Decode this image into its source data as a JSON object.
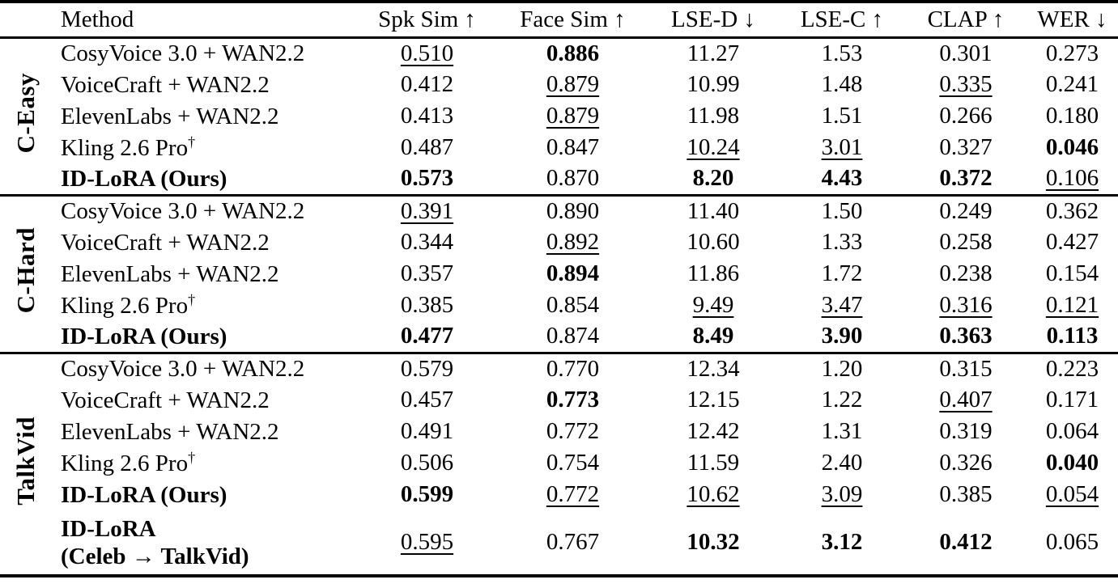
{
  "table": {
    "headers": [
      "Method",
      "Spk Sim ↑",
      "Face Sim ↑",
      "LSE-D ↓",
      "LSE-C ↑",
      "CLAP ↑",
      "WER ↓"
    ],
    "sections": [
      {
        "group": "C-Easy",
        "rows": [
          {
            "method_lines": [
              "CosyVoice 3.0 + WAN2.2"
            ],
            "bold": false,
            "sup": "",
            "cells": [
              {
                "v": "0.510",
                "s": "u"
              },
              {
                "v": "0.886",
                "s": "b"
              },
              {
                "v": "11.27",
                "s": ""
              },
              {
                "v": "1.53",
                "s": ""
              },
              {
                "v": "0.301",
                "s": ""
              },
              {
                "v": "0.273",
                "s": ""
              }
            ]
          },
          {
            "method_lines": [
              "VoiceCraft + WAN2.2"
            ],
            "bold": false,
            "sup": "",
            "cells": [
              {
                "v": "0.412",
                "s": ""
              },
              {
                "v": "0.879",
                "s": "u"
              },
              {
                "v": "10.99",
                "s": ""
              },
              {
                "v": "1.48",
                "s": ""
              },
              {
                "v": "0.335",
                "s": "u"
              },
              {
                "v": "0.241",
                "s": ""
              }
            ]
          },
          {
            "method_lines": [
              "ElevenLabs + WAN2.2"
            ],
            "bold": false,
            "sup": "",
            "cells": [
              {
                "v": "0.413",
                "s": ""
              },
              {
                "v": "0.879",
                "s": "u"
              },
              {
                "v": "11.98",
                "s": ""
              },
              {
                "v": "1.51",
                "s": ""
              },
              {
                "v": "0.266",
                "s": ""
              },
              {
                "v": "0.180",
                "s": ""
              }
            ]
          },
          {
            "method_lines": [
              "Kling 2.6 Pro"
            ],
            "bold": false,
            "sup": "†",
            "cells": [
              {
                "v": "0.487",
                "s": ""
              },
              {
                "v": "0.847",
                "s": ""
              },
              {
                "v": "10.24",
                "s": "u"
              },
              {
                "v": "3.01",
                "s": "u"
              },
              {
                "v": "0.327",
                "s": ""
              },
              {
                "v": "0.046",
                "s": "b"
              }
            ]
          },
          {
            "method_lines": [
              "ID-LoRA (Ours)"
            ],
            "bold": true,
            "sup": "",
            "cells": [
              {
                "v": "0.573",
                "s": "b"
              },
              {
                "v": "0.870",
                "s": ""
              },
              {
                "v": "8.20",
                "s": "b"
              },
              {
                "v": "4.43",
                "s": "b"
              },
              {
                "v": "0.372",
                "s": "b"
              },
              {
                "v": "0.106",
                "s": "u"
              }
            ]
          }
        ]
      },
      {
        "group": "C-Hard",
        "rows": [
          {
            "method_lines": [
              "CosyVoice 3.0 + WAN2.2"
            ],
            "bold": false,
            "sup": "",
            "cells": [
              {
                "v": "0.391",
                "s": "u"
              },
              {
                "v": "0.890",
                "s": ""
              },
              {
                "v": "11.40",
                "s": ""
              },
              {
                "v": "1.50",
                "s": ""
              },
              {
                "v": "0.249",
                "s": ""
              },
              {
                "v": "0.362",
                "s": ""
              }
            ]
          },
          {
            "method_lines": [
              "VoiceCraft + WAN2.2"
            ],
            "bold": false,
            "sup": "",
            "cells": [
              {
                "v": "0.344",
                "s": ""
              },
              {
                "v": "0.892",
                "s": "u"
              },
              {
                "v": "10.60",
                "s": ""
              },
              {
                "v": "1.33",
                "s": ""
              },
              {
                "v": "0.258",
                "s": ""
              },
              {
                "v": "0.427",
                "s": ""
              }
            ]
          },
          {
            "method_lines": [
              "ElevenLabs + WAN2.2"
            ],
            "bold": false,
            "sup": "",
            "cells": [
              {
                "v": "0.357",
                "s": ""
              },
              {
                "v": "0.894",
                "s": "b"
              },
              {
                "v": "11.86",
                "s": ""
              },
              {
                "v": "1.72",
                "s": ""
              },
              {
                "v": "0.238",
                "s": ""
              },
              {
                "v": "0.154",
                "s": ""
              }
            ]
          },
          {
            "method_lines": [
              "Kling 2.6 Pro"
            ],
            "bold": false,
            "sup": "†",
            "cells": [
              {
                "v": "0.385",
                "s": ""
              },
              {
                "v": "0.854",
                "s": ""
              },
              {
                "v": "9.49",
                "s": "u"
              },
              {
                "v": "3.47",
                "s": "u"
              },
              {
                "v": "0.316",
                "s": "u"
              },
              {
                "v": "0.121",
                "s": "u"
              }
            ]
          },
          {
            "method_lines": [
              "ID-LoRA (Ours)"
            ],
            "bold": true,
            "sup": "",
            "cells": [
              {
                "v": "0.477",
                "s": "b"
              },
              {
                "v": "0.874",
                "s": ""
              },
              {
                "v": "8.49",
                "s": "b"
              },
              {
                "v": "3.90",
                "s": "b"
              },
              {
                "v": "0.363",
                "s": "b"
              },
              {
                "v": "0.113",
                "s": "b"
              }
            ]
          }
        ]
      },
      {
        "group": "TalkVid",
        "rows": [
          {
            "method_lines": [
              "CosyVoice 3.0 + WAN2.2"
            ],
            "bold": false,
            "sup": "",
            "cells": [
              {
                "v": "0.579",
                "s": ""
              },
              {
                "v": "0.770",
                "s": ""
              },
              {
                "v": "12.34",
                "s": ""
              },
              {
                "v": "1.20",
                "s": ""
              },
              {
                "v": "0.315",
                "s": ""
              },
              {
                "v": "0.223",
                "s": ""
              }
            ]
          },
          {
            "method_lines": [
              "VoiceCraft + WAN2.2"
            ],
            "bold": false,
            "sup": "",
            "cells": [
              {
                "v": "0.457",
                "s": ""
              },
              {
                "v": "0.773",
                "s": "b"
              },
              {
                "v": "12.15",
                "s": ""
              },
              {
                "v": "1.22",
                "s": ""
              },
              {
                "v": "0.407",
                "s": "u"
              },
              {
                "v": "0.171",
                "s": ""
              }
            ]
          },
          {
            "method_lines": [
              "ElevenLabs + WAN2.2"
            ],
            "bold": false,
            "sup": "",
            "cells": [
              {
                "v": "0.491",
                "s": ""
              },
              {
                "v": "0.772",
                "s": ""
              },
              {
                "v": "12.42",
                "s": ""
              },
              {
                "v": "1.31",
                "s": ""
              },
              {
                "v": "0.319",
                "s": ""
              },
              {
                "v": "0.064",
                "s": ""
              }
            ]
          },
          {
            "method_lines": [
              "Kling 2.6 Pro"
            ],
            "bold": false,
            "sup": "†",
            "cells": [
              {
                "v": "0.506",
                "s": ""
              },
              {
                "v": "0.754",
                "s": ""
              },
              {
                "v": "11.59",
                "s": ""
              },
              {
                "v": "2.40",
                "s": ""
              },
              {
                "v": "0.326",
                "s": ""
              },
              {
                "v": "0.040",
                "s": "b"
              }
            ]
          },
          {
            "method_lines": [
              "ID-LoRA (Ours)"
            ],
            "bold": true,
            "sup": "",
            "cells": [
              {
                "v": "0.599",
                "s": "b"
              },
              {
                "v": "0.772",
                "s": "u"
              },
              {
                "v": "10.62",
                "s": "u"
              },
              {
                "v": "3.09",
                "s": "u"
              },
              {
                "v": "0.385",
                "s": ""
              },
              {
                "v": "0.054",
                "s": "u"
              }
            ]
          },
          {
            "method_lines": [
              "ID-LoRA",
              "(Celeb → TalkVid)"
            ],
            "bold": true,
            "sup": "",
            "tall": true,
            "cells": [
              {
                "v": "0.595",
                "s": "u"
              },
              {
                "v": "0.767",
                "s": ""
              },
              {
                "v": "10.32",
                "s": "b"
              },
              {
                "v": "3.12",
                "s": "b"
              },
              {
                "v": "0.412",
                "s": "b"
              },
              {
                "v": "0.065",
                "s": ""
              }
            ]
          }
        ]
      }
    ]
  }
}
